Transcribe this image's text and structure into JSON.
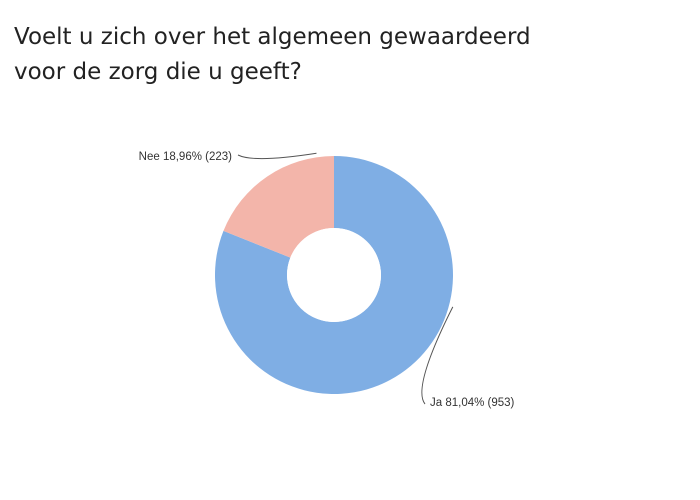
{
  "chart_data": {
    "type": "pie",
    "donut": true,
    "title_lines": [
      "Voelt u zich over het algemeen gewaardeerd",
      "voor de zorg die u geeft?"
    ],
    "slices": [
      {
        "name": "Ja",
        "percent_label": "81,04%",
        "count": 953,
        "value": 81.04,
        "color": "#7faee4"
      },
      {
        "name": "Nee",
        "percent_label": "18,96%",
        "count": 223,
        "value": 18.96,
        "color": "#f3b5aa"
      }
    ],
    "legend": "none"
  }
}
